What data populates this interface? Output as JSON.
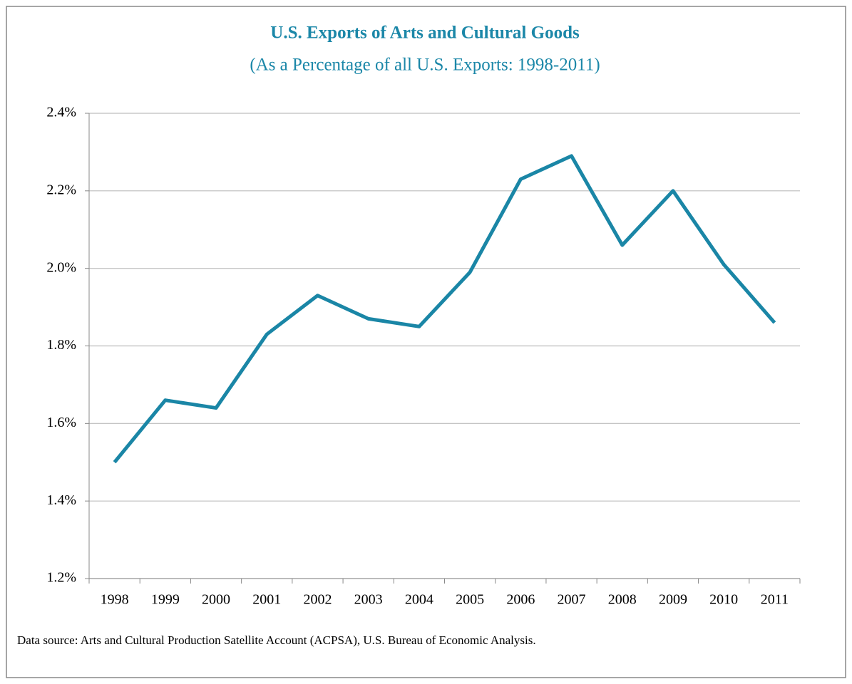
{
  "chart_data": {
    "type": "line",
    "title": "U.S. Exports of Arts and Cultural Goods",
    "subtitle": "(As a Percentage of all U.S. Exports: 1998-2011)",
    "note": "Data source: Arts and Cultural Production Satellite Account (ACPSA), U.S. Bureau of Economic Analysis.",
    "categories": [
      "1998",
      "1999",
      "2000",
      "2001",
      "2002",
      "2003",
      "2004",
      "2005",
      "2006",
      "2007",
      "2008",
      "2009",
      "2010",
      "2011"
    ],
    "series": [
      {
        "name": "Arts and cultural goods exports",
        "color": "#1a86a6",
        "values": [
          1.5,
          1.66,
          1.64,
          1.83,
          1.93,
          1.87,
          1.85,
          1.99,
          2.23,
          2.29,
          2.06,
          2.2,
          2.01,
          1.86
        ]
      }
    ],
    "ylim": [
      1.2,
      2.4
    ],
    "yticks": [
      {
        "value": 1.2,
        "label": "1.2%"
      },
      {
        "value": 1.4,
        "label": "1.4%"
      },
      {
        "value": 1.6,
        "label": "1.6%"
      },
      {
        "value": 1.8,
        "label": "1.8%"
      },
      {
        "value": 2.0,
        "label": "2.0%"
      },
      {
        "value": 2.2,
        "label": "2.2%"
      },
      {
        "value": 2.4,
        "label": "2.4%"
      }
    ],
    "grid": true,
    "legend": false
  }
}
